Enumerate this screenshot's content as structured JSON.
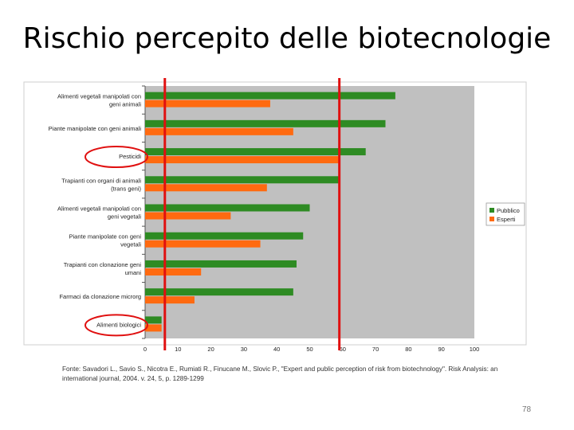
{
  "slide": {
    "title": "Rischio percepito delle biotecnologie",
    "page_number": "78",
    "source": "Fonte: Savadori L., Savio S., Nicotra E., Rumiati R., Finucane M., Slovic P., \"Expert and public perception of risk from biotechnology\". Risk Analysis: an international journal, 2004. v. 24, 5, p. 1289-1299"
  },
  "colors": {
    "pubblico": "#2e8b23",
    "esperti": "#ff6a10",
    "plot_bg": "#c0c0c0",
    "marker": "#e01010"
  },
  "chart_data": {
    "type": "bar",
    "orientation": "horizontal",
    "categories": [
      "Alimenti vegetali manipolati con geni animali",
      "Piante manipolate con geni animali",
      "Pesticidi",
      "Trapianti con organi di animali (trans geni)",
      "Alimenti vegetali manipolati con geni vegetali",
      "Piante manipolate con geni vegetali",
      "Trapianti con clonazione geni umani",
      "Farmaci da clonazione microrg",
      "Alimenti biologici"
    ],
    "series": [
      {
        "name": "Pubblico",
        "values": [
          76,
          73,
          67,
          59,
          50,
          48,
          46,
          45,
          5
        ]
      },
      {
        "name": "Esperti",
        "values": [
          38,
          45,
          59,
          37,
          26,
          35,
          17,
          15,
          5
        ]
      }
    ],
    "xlim": [
      0,
      100
    ],
    "xticks": [
      "0",
      "10",
      "20",
      "30",
      "40",
      "50",
      "60",
      "70",
      "80",
      "90",
      "100"
    ],
    "legend_position": "right",
    "annotations": {
      "vertical_lines_at": [
        6,
        59
      ],
      "circled_categories": [
        "Pesticidi",
        "Alimenti biologici"
      ]
    }
  }
}
